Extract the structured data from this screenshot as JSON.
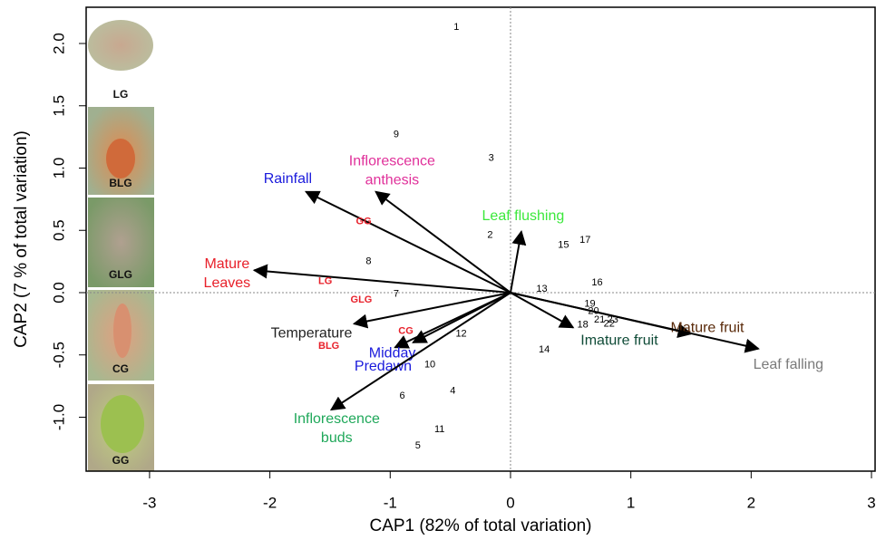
{
  "chart_data": {
    "type": "biplot",
    "xlabel": "CAP1 (82% of total variation)",
    "ylabel": "CAP2 (7 % of total variation)",
    "xlim": [
      -3.527,
      3.03
    ],
    "ylim": [
      -1.433,
      2.291
    ],
    "xticks": [
      -3,
      -2,
      -1,
      0,
      1,
      2,
      3
    ],
    "yticks": [
      {
        "value": -1,
        "label": "-1.0"
      },
      {
        "value": -0.5,
        "label": "-0.5"
      },
      {
        "value": 0,
        "label": "0.0"
      },
      {
        "value": 0.5,
        "label": "0.5"
      },
      {
        "value": 1,
        "label": "1.0"
      },
      {
        "value": 1.5,
        "label": "1.5"
      },
      {
        "value": 2,
        "label": "2.0"
      }
    ],
    "points": {
      "color": "#000000",
      "labels": [
        "1",
        "2",
        "3",
        "4",
        "5",
        "6",
        "7",
        "8",
        "9",
        "10",
        "11",
        "12",
        "13",
        "14",
        "15",
        "16",
        "17",
        "18",
        "19",
        "20",
        "21",
        "22",
        "23"
      ],
      "x": [
        -0.45,
        -0.17,
        -0.16,
        -0.48,
        -0.77,
        -0.9,
        -0.95,
        -1.18,
        -0.95,
        -0.67,
        -0.59,
        -0.41,
        0.26,
        0.28,
        0.44,
        0.72,
        0.62,
        0.6,
        0.66,
        0.69,
        0.74,
        0.82,
        0.85
      ],
      "y": [
        2.13,
        0.46,
        1.08,
        -0.79,
        -1.23,
        -0.83,
        -0.01,
        0.25,
        1.27,
        -0.58,
        -1.1,
        -0.33,
        0.03,
        -0.46,
        0.38,
        0.08,
        0.42,
        -0.26,
        -0.09,
        -0.15,
        -0.22,
        -0.25,
        -0.22
      ]
    },
    "groups": {
      "color": "#e8202a",
      "labels": [
        "GG",
        "LG",
        "GLG",
        "CG",
        "BLG"
      ],
      "x": [
        -1.22,
        -1.54,
        -1.24,
        -0.87,
        -1.51
      ],
      "y": [
        0.57,
        0.09,
        -0.06,
        -0.31,
        -0.43
      ]
    },
    "vectors": [
      {
        "name": [
          "Rainfall"
        ],
        "color": "#1a1adc",
        "x": -1.7,
        "y": 0.81
      },
      {
        "name": [
          "Inflorescence",
          "anthesis"
        ],
        "color": "#e0309a",
        "x": -1.12,
        "y": 0.81
      },
      {
        "name": [
          "Leaf flushing"
        ],
        "color": "#3be83b",
        "x": 0.09,
        "y": 0.49
      },
      {
        "name": [
          "Mature",
          "Leaves"
        ],
        "color": "#e8202a",
        "x": -2.13,
        "y": 0.18
      },
      {
        "name": [
          "Temperature"
        ],
        "color": "#222222",
        "x": -1.3,
        "y": -0.25
      },
      {
        "name": [
          "Midday"
        ],
        "color": "#1a1adc",
        "x": -0.96,
        "y": -0.44
      },
      {
        "name": [
          "Predawn"
        ],
        "color": "#1a1adc",
        "x": -0.81,
        "y": -0.4
      },
      {
        "name": [
          "Inflorescence",
          "buds"
        ],
        "color": "#1fa85a",
        "x": -1.49,
        "y": -0.94
      },
      {
        "name": [
          "Imature fruit"
        ],
        "color": "#0e4a36",
        "x": 0.52,
        "y": -0.28
      },
      {
        "name": [
          "Mature fruit"
        ],
        "color": "#5a2a0a",
        "x": 1.5,
        "y": -0.33
      },
      {
        "name": [
          "Leaf falling"
        ],
        "color": "#7a7a7a",
        "x": 2.06,
        "y": -0.45
      }
    ],
    "images": {
      "labels": [
        "LG",
        "BLG",
        "GLG",
        "CG",
        "GG"
      ]
    }
  }
}
